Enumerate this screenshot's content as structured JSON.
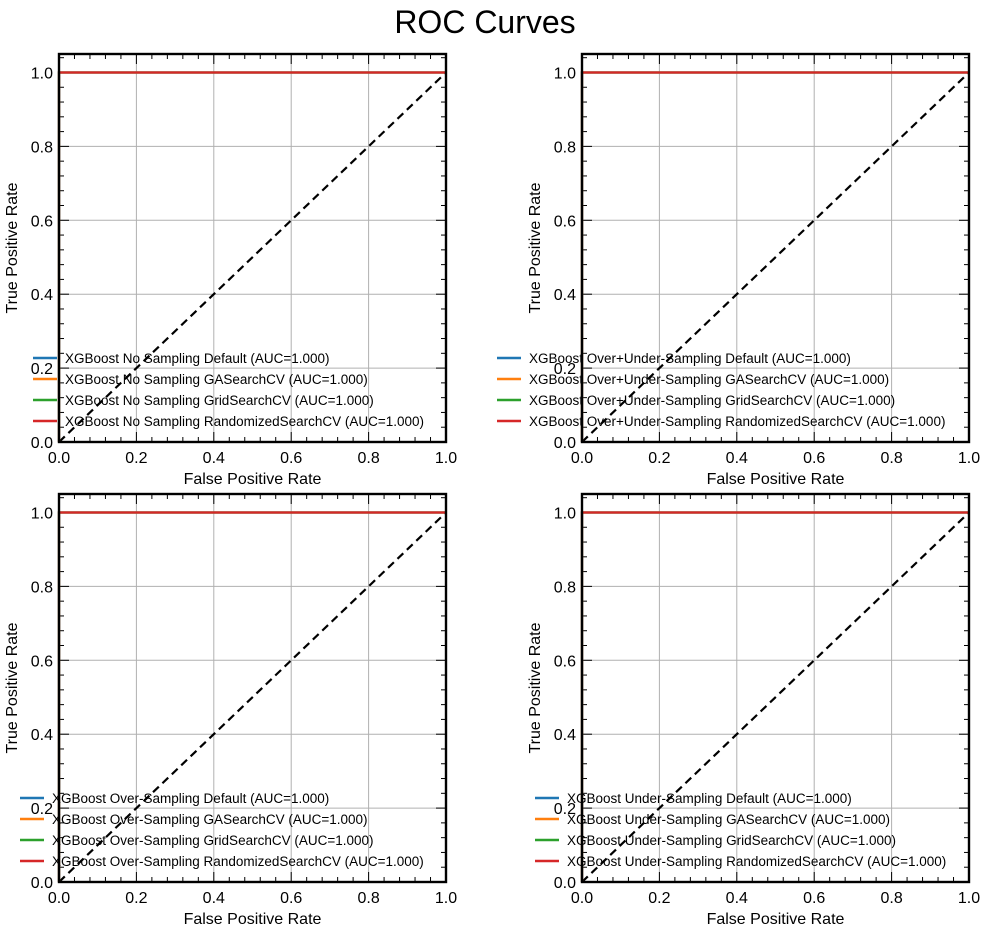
{
  "figure": {
    "title": "ROC Curves"
  },
  "colors": {
    "diagonal": "#000000",
    "grid": "#b0b0b0"
  },
  "chart_data": [
    {
      "type": "line",
      "xlabel": "False Positive Rate",
      "ylabel": "True Positive Rate",
      "xlim": [
        0,
        1
      ],
      "ylim": [
        0,
        1.05
      ],
      "xticks": [
        "0.0",
        "0.2",
        "0.4",
        "0.6",
        "0.8",
        "1.0"
      ],
      "yticks": [
        "0.0",
        "0.2",
        "0.4",
        "0.6",
        "0.8",
        "1.0"
      ],
      "grid": true,
      "legend_position": "lower-left",
      "series": [
        {
          "name": "XGBoost No Sampling Default (AUC=1.000)",
          "color": "#1f77b4",
          "x": [
            0,
            0,
            1
          ],
          "y": [
            0,
            1,
            1
          ]
        },
        {
          "name": "XGBoost No Sampling GASearchCV (AUC=1.000)",
          "color": "#ff7f0e",
          "x": [
            0,
            0,
            1
          ],
          "y": [
            0,
            1,
            1
          ]
        },
        {
          "name": "XGBoost No Sampling GridSearchCV (AUC=1.000)",
          "color": "#2ca02c",
          "x": [
            0,
            0,
            1
          ],
          "y": [
            0,
            1,
            1
          ]
        },
        {
          "name": "XGBoost No Sampling RandomizedSearchCV (AUC=1.000)",
          "color": "#d62728",
          "x": [
            0,
            0,
            1
          ],
          "y": [
            0,
            1,
            1
          ]
        }
      ],
      "reference_line": {
        "x": [
          0,
          1
        ],
        "y": [
          0,
          1
        ],
        "style": "dashed"
      }
    },
    {
      "type": "line",
      "xlabel": "False Positive Rate",
      "ylabel": "True Positive Rate",
      "xlim": [
        0,
        1
      ],
      "ylim": [
        0,
        1.05
      ],
      "xticks": [
        "0.0",
        "0.2",
        "0.4",
        "0.6",
        "0.8",
        "1.0"
      ],
      "yticks": [
        "0.0",
        "0.2",
        "0.4",
        "0.6",
        "0.8",
        "1.0"
      ],
      "grid": true,
      "legend_position": "lower-right",
      "series": [
        {
          "name": "XGBoost Over+Under-Sampling Default (AUC=1.000)",
          "color": "#1f77b4",
          "x": [
            0,
            0,
            1
          ],
          "y": [
            0,
            1,
            1
          ]
        },
        {
          "name": "XGBoost Over+Under-Sampling GASearchCV (AUC=1.000)",
          "color": "#ff7f0e",
          "x": [
            0,
            0,
            1
          ],
          "y": [
            0,
            1,
            1
          ]
        },
        {
          "name": "XGBoost Over+Under-Sampling GridSearchCV (AUC=1.000)",
          "color": "#2ca02c",
          "x": [
            0,
            0,
            1
          ],
          "y": [
            0,
            1,
            1
          ]
        },
        {
          "name": "XGBoost Over+Under-Sampling RandomizedSearchCV (AUC=1.000)",
          "color": "#d62728",
          "x": [
            0,
            0,
            1
          ],
          "y": [
            0,
            1,
            1
          ]
        }
      ],
      "reference_line": {
        "x": [
          0,
          1
        ],
        "y": [
          0,
          1
        ],
        "style": "dashed"
      }
    },
    {
      "type": "line",
      "xlabel": "False Positive Rate",
      "ylabel": "True Positive Rate",
      "xlim": [
        0,
        1
      ],
      "ylim": [
        0,
        1.05
      ],
      "xticks": [
        "0.0",
        "0.2",
        "0.4",
        "0.6",
        "0.8",
        "1.0"
      ],
      "yticks": [
        "0.0",
        "0.2",
        "0.4",
        "0.6",
        "0.8",
        "1.0"
      ],
      "grid": true,
      "legend_position": "lower-right",
      "series": [
        {
          "name": "XGBoost Over-Sampling Default (AUC=1.000)",
          "color": "#1f77b4",
          "x": [
            0,
            0,
            1
          ],
          "y": [
            0,
            1,
            1
          ]
        },
        {
          "name": "XGBoost Over-Sampling GASearchCV (AUC=1.000)",
          "color": "#ff7f0e",
          "x": [
            0,
            0,
            1
          ],
          "y": [
            0,
            1,
            1
          ]
        },
        {
          "name": "XGBoost Over-Sampling GridSearchCV (AUC=1.000)",
          "color": "#2ca02c",
          "x": [
            0,
            0,
            1
          ],
          "y": [
            0,
            1,
            1
          ]
        },
        {
          "name": "XGBoost Over-Sampling RandomizedSearchCV (AUC=1.000)",
          "color": "#d62728",
          "x": [
            0,
            0,
            1
          ],
          "y": [
            0,
            1,
            1
          ]
        }
      ],
      "reference_line": {
        "x": [
          0,
          1
        ],
        "y": [
          0,
          1
        ],
        "style": "dashed"
      }
    },
    {
      "type": "line",
      "xlabel": "False Positive Rate",
      "ylabel": "True Positive Rate",
      "xlim": [
        0,
        1
      ],
      "ylim": [
        0,
        1.05
      ],
      "xticks": [
        "0.0",
        "0.2",
        "0.4",
        "0.6",
        "0.8",
        "1.0"
      ],
      "yticks": [
        "0.0",
        "0.2",
        "0.4",
        "0.6",
        "0.8",
        "1.0"
      ],
      "grid": true,
      "legend_position": "lower-right",
      "series": [
        {
          "name": "XGBoost Under-Sampling Default (AUC=1.000)",
          "color": "#1f77b4",
          "x": [
            0,
            0,
            1
          ],
          "y": [
            0,
            1,
            1
          ]
        },
        {
          "name": "XGBoost Under-Sampling GASearchCV (AUC=1.000)",
          "color": "#ff7f0e",
          "x": [
            0,
            0,
            1
          ],
          "y": [
            0,
            1,
            1
          ]
        },
        {
          "name": "XGBoost Under-Sampling GridSearchCV (AUC=1.000)",
          "color": "#2ca02c",
          "x": [
            0,
            0,
            1
          ],
          "y": [
            0,
            1,
            1
          ]
        },
        {
          "name": "XGBoost Under-Sampling RandomizedSearchCV (AUC=1.000)",
          "color": "#d62728",
          "x": [
            0,
            0,
            1
          ],
          "y": [
            0,
            1,
            1
          ]
        }
      ],
      "reference_line": {
        "x": [
          0,
          1
        ],
        "y": [
          0,
          1
        ],
        "style": "dashed"
      }
    }
  ]
}
